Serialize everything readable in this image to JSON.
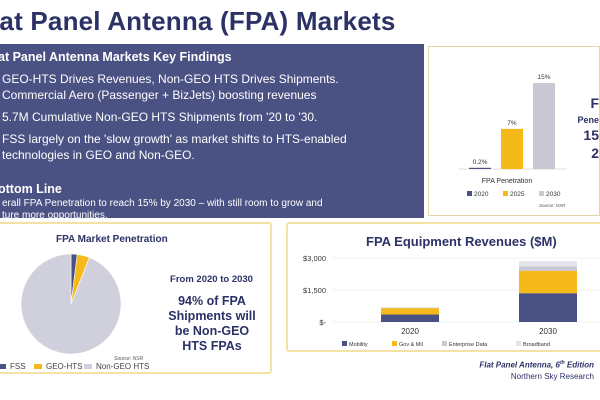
{
  "page": {
    "title": "lat Panel Antenna (FPA) Markets"
  },
  "findings": {
    "heading": "at Panel Antenna Markets Key Findings",
    "bullets": [
      "GEO-HTS Drives Revenues, Non-GEO HTS Drives Shipments.",
      "Commercial Aero (Passenger + BizJets) boosting revenues",
      "5.7M Cumulative Non-GEO HTS Shipments from '20 to '30.",
      "FSS largely on the 'slow growth' as market shifts to HTS-enabled",
      "technologies in GEO and Non-GEO."
    ],
    "bottom_line_heading": "ottom Line",
    "bottom_line": [
      "erall FPA Penetration to reach 15% by 2030    – with still room to grow and",
      "ture more opportunities."
    ]
  },
  "penetration_card": {
    "side_caption": [
      "F",
      "Pene",
      "15",
      "2"
    ],
    "source": "Source: NSR"
  },
  "market_penetration": {
    "title": "FPA Market Penetration",
    "lede": "From 2020 to 2030",
    "headline": [
      "94% of FPA",
      "Shipments will",
      "be Non-GEO",
      "HTS FPAs"
    ],
    "source": "Source: NSR",
    "legend": [
      "FSS",
      "GEO-HTS",
      "Non-GEO HTS"
    ]
  },
  "equipment_revenues": {
    "title": "FPA Equipment Revenues ($M)",
    "legend": [
      "Mobility",
      "Gov & Mil",
      "Enterprise Data",
      "Broadband"
    ]
  },
  "footer": {
    "line1_prefix": "Flat Panel Antenna, 6",
    "line1_sup": "th",
    "line1_suffix": " Edition",
    "line2": "Northern Sky Research"
  },
  "colors": {
    "navy": "#2c3166",
    "panel": "#4a5183",
    "series_navy": "#4a5183",
    "series_gold": "#f5b91a",
    "series_grey": "#c9c9d6",
    "pie_grey": "#cfd0dc",
    "card_border": "#f2e2a3"
  },
  "chart_data": [
    {
      "type": "bar",
      "title": "FPA Penetration",
      "categories": [
        "2020",
        "2025",
        "2030"
      ],
      "values": [
        0.2,
        7,
        15
      ],
      "data_labels": [
        "0.2%",
        "7%",
        "15%"
      ],
      "legend": [
        "2020",
        "2025",
        "2030"
      ],
      "colors": [
        "#4a5183",
        "#f5b91a",
        "#c9c9d6"
      ],
      "ylim": [
        0,
        15
      ],
      "grid": false,
      "legend_position": "bottom"
    },
    {
      "type": "pie",
      "labels": [
        "FSS",
        "GEO-HTS",
        "Non-GEO HTS"
      ],
      "values": [
        2,
        4,
        94
      ],
      "colors": [
        "#4a5183",
        "#f5b91a",
        "#cfd0dc"
      ],
      "legend_position": "bottom"
    },
    {
      "type": "bar",
      "stacked": true,
      "title": "FPA Equipment Revenues ($M)",
      "categories": [
        "2020",
        "2030"
      ],
      "series": [
        {
          "name": "Mobility",
          "values": [
            350,
            1350
          ],
          "color": "#4a5183"
        },
        {
          "name": "Gov & Mil",
          "values": [
            300,
            1050
          ],
          "color": "#f5b91a"
        },
        {
          "name": "Enterprise Data",
          "values": [
            30,
            200
          ],
          "color": "#c9c9d6"
        },
        {
          "name": "Broadband",
          "values": [
            0,
            250
          ],
          "color": "#e3e3ea"
        }
      ],
      "yticks": [
        "$-",
        "$1,500",
        "$3,000"
      ],
      "ytick_values": [
        0,
        1500,
        3000
      ],
      "ylim": [
        0,
        3000
      ],
      "grid": true,
      "legend_position": "bottom"
    }
  ]
}
